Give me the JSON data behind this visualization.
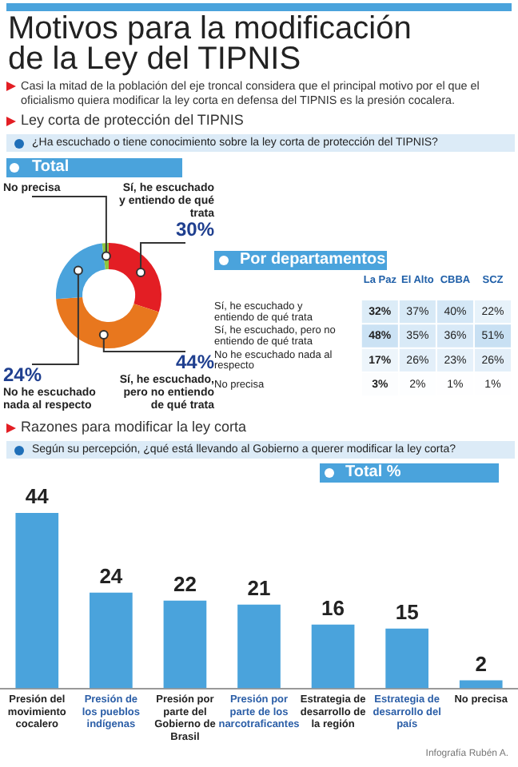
{
  "chart_data": [
    {
      "type": "donut",
      "title": "Motivos para la modificación de la Ley del TIPNIS",
      "subtitle": "Casi la mitad de la población del eje troncal considera que el principal motivo por el que el oficialismo quiera modificar la ley corta en defensa del TIPNIS es la presión cocalera.",
      "annotations": [
        "Ley corta de protección del TIPNIS",
        "¿Ha escuchado o tiene conocimiento sobre la ley corta de protección del TIPNIS?",
        "Total"
      ],
      "categories": [
        "Sí, he escuchado y entiendo de qué trata",
        "Sí, he escuchado, pero no entiendo de qué trata",
        "No he escuchado nada al respecto",
        "No precisa"
      ],
      "values": [
        30,
        44,
        24,
        2
      ],
      "colors": [
        "#e31e24",
        "#e8771e",
        "#4aa3dc",
        "#8dc63f"
      ],
      "value_labels": [
        "30%",
        "44%",
        "24%",
        null
      ]
    },
    {
      "type": "heatmap",
      "title": "Por departamentos",
      "categories": [
        "La Paz",
        "El Alto",
        "CBBA",
        "SCZ"
      ],
      "y_categories": [
        "Sí, he escuchado y entiendo de qué trata",
        "Sí, he escuchado, pero no entiendo de qué trata",
        "No he escuchado nada al respecto",
        "No precisa"
      ],
      "cells": [
        [
          32,
          37,
          40,
          22
        ],
        [
          48,
          35,
          36,
          51
        ],
        [
          17,
          26,
          23,
          26
        ],
        [
          3,
          2,
          1,
          1
        ]
      ],
      "cell_labels": [
        [
          "32%",
          "37%",
          "40%",
          "22%"
        ],
        [
          "48%",
          "35%",
          "36%",
          "51%"
        ],
        [
          "17%",
          "26%",
          "23%",
          "26%"
        ],
        [
          "3%",
          "2%",
          "1%",
          "1%"
        ]
      ]
    },
    {
      "type": "bar",
      "title": "Total %",
      "annotations": [
        "Razones para modificar la ley corta",
        "Según su percepción, ¿qué está llevando al Gobierno a querer modificar la ley corta?",
        "Infografía Rubén A."
      ],
      "categories": [
        "Presión del movimiento cocalero",
        "Presión de los pueblos indígenas",
        "Presión por parte del Gobierno de Brasil",
        "Presión por parte de los narcotraficantes",
        "Estrategia de desarrollo de la región",
        "Estrategia de desarrollo del país",
        "No precisa"
      ],
      "values": [
        44,
        24,
        22,
        21,
        16,
        15,
        2
      ],
      "color": "#4aa3dc",
      "data_labels": true,
      "tick_labels": "x"
    }
  ]
}
